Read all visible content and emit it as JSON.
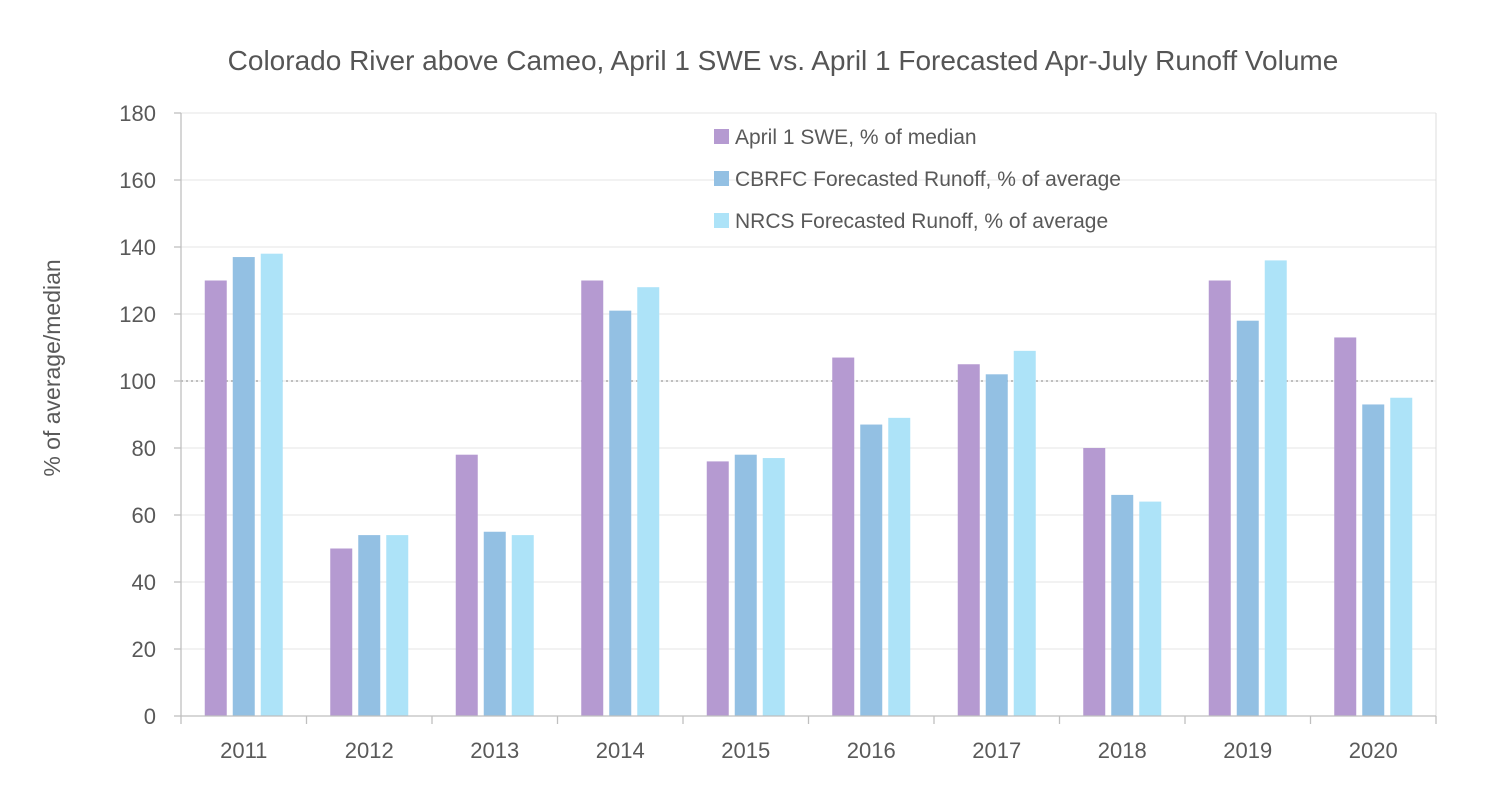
{
  "chart_data": {
    "type": "bar",
    "title": "Colorado River above Cameo, April 1 SWE vs. April 1 Forecasted Apr-July Runoff Volume",
    "xlabel": "",
    "ylabel": "% of average/median",
    "ylim": [
      0,
      180
    ],
    "yticks": [
      0,
      20,
      40,
      60,
      80,
      100,
      120,
      140,
      160,
      180
    ],
    "reference_line": 100,
    "grid": true,
    "legend_position": "top-center",
    "categories": [
      "2011",
      "2012",
      "2013",
      "2014",
      "2015",
      "2016",
      "2017",
      "2018",
      "2019",
      "2020"
    ],
    "series": [
      {
        "name": "April 1 SWE, % of median",
        "color": "#b59ad1",
        "values": [
          130,
          50,
          78,
          130,
          76,
          107,
          105,
          80,
          130,
          113
        ]
      },
      {
        "name": "CBRFC Forecasted Runoff, % of average",
        "color": "#93c0e3",
        "values": [
          137,
          54,
          55,
          121,
          78,
          87,
          102,
          66,
          118,
          93
        ]
      },
      {
        "name": "NRCS Forecasted Runoff, % of average",
        "color": "#ade3f8",
        "values": [
          138,
          54,
          54,
          128,
          77,
          89,
          109,
          64,
          136,
          95
        ]
      }
    ]
  }
}
